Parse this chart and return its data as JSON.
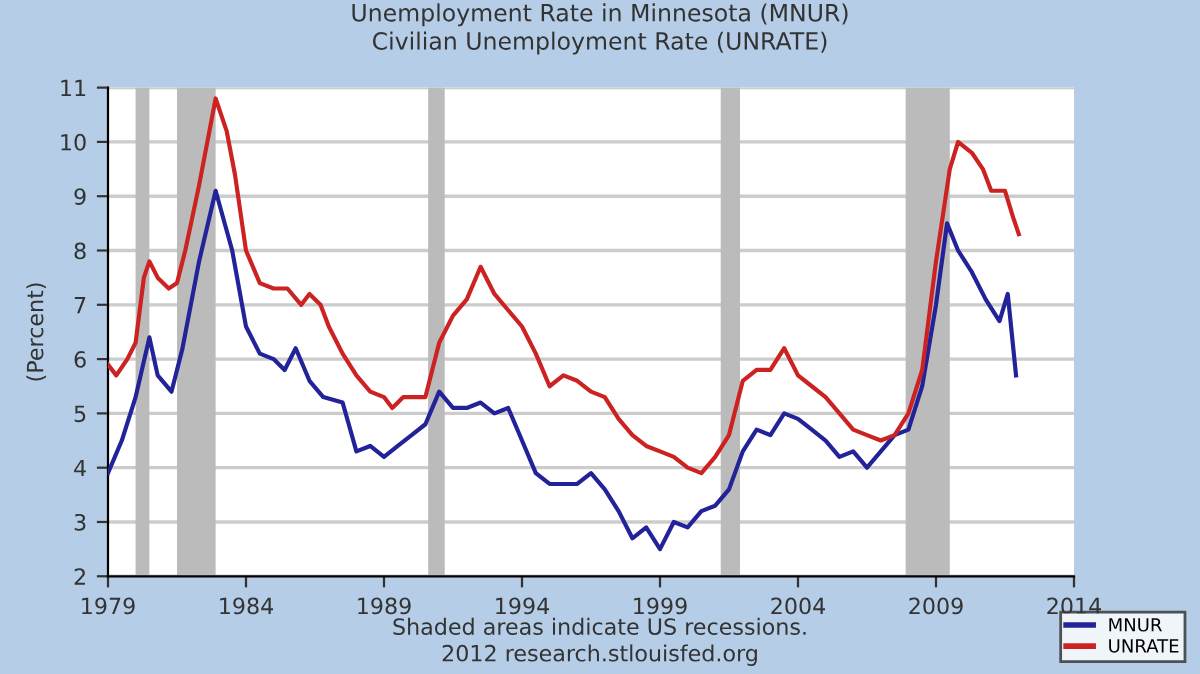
{
  "chart_data": {
    "type": "line",
    "title": "Unemployment Rate in Minnesota (MNUR)\nCivilian Unemployment Rate (UNRATE)",
    "ylabel": "(Percent)",
    "annotations": [
      "Shaded areas indicate US recessions.\n2012 research.stlouisfed.org"
    ],
    "xlim": [
      1979,
      2014
    ],
    "xticks": [
      1979,
      1984,
      1989,
      1994,
      1999,
      2004,
      2009,
      2014
    ],
    "ylim": [
      2,
      11
    ],
    "yticks": [
      2,
      3,
      4,
      5,
      6,
      7,
      8,
      9,
      10,
      11
    ],
    "grid": "y",
    "legend": "bottom right",
    "line_style": "solid",
    "marker": "none",
    "bands": [
      {
        "axis": "x",
        "from": 1980.0,
        "to": 1980.5,
        "color": "#bbbbbb"
      },
      {
        "axis": "x",
        "from": 1981.5,
        "to": 1982.9,
        "color": "#bbbbbb"
      },
      {
        "axis": "x",
        "from": 1990.6,
        "to": 1991.2,
        "color": "#bbbbbb"
      },
      {
        "axis": "x",
        "from": 2001.2,
        "to": 2001.9,
        "color": "#bbbbbb"
      },
      {
        "axis": "x",
        "from": 2007.9,
        "to": 2009.5,
        "color": "#bbbbbb"
      }
    ],
    "series": [
      {
        "name": "MNUR",
        "color": "#222299",
        "x": [
          1979.0,
          1979.5,
          1980.0,
          1980.5,
          1980.8,
          1981.3,
          1981.7,
          1982.3,
          1982.9,
          1983.5,
          1984.0,
          1984.5,
          1985.0,
          1985.4,
          1985.8,
          1986.3,
          1986.8,
          1987.5,
          1988.0,
          1988.5,
          1989.0,
          1989.5,
          1990.0,
          1990.5,
          1991.0,
          1991.5,
          1992.0,
          1992.5,
          1993.0,
          1993.5,
          1994.0,
          1994.5,
          1995.0,
          1995.5,
          1996.0,
          1996.5,
          1997.0,
          1997.5,
          1998.0,
          1998.5,
          1999.0,
          1999.5,
          2000.0,
          2000.5,
          2001.0,
          2001.5,
          2002.0,
          2002.5,
          2003.0,
          2003.5,
          2004.0,
          2004.5,
          2005.0,
          2005.5,
          2006.0,
          2006.5,
          2007.0,
          2007.5,
          2008.0,
          2008.5,
          2009.0,
          2009.4,
          2009.8,
          2010.3,
          2010.8,
          2011.3,
          2011.6,
          2011.9
        ],
        "values": [
          3.9,
          4.5,
          5.3,
          6.4,
          5.7,
          5.4,
          6.2,
          7.8,
          9.1,
          8.0,
          6.6,
          6.1,
          6.0,
          5.8,
          6.2,
          5.6,
          5.3,
          5.2,
          4.3,
          4.4,
          4.2,
          4.4,
          4.6,
          4.8,
          5.4,
          5.1,
          5.1,
          5.2,
          5.0,
          5.1,
          4.5,
          3.9,
          3.7,
          3.7,
          3.7,
          3.9,
          3.6,
          3.2,
          2.7,
          2.9,
          2.5,
          3.0,
          2.9,
          3.2,
          3.3,
          3.6,
          4.3,
          4.7,
          4.6,
          5.0,
          4.9,
          4.7,
          4.5,
          4.2,
          4.3,
          4.0,
          4.3,
          4.6,
          4.7,
          5.5,
          7.0,
          8.5,
          8.0,
          7.6,
          7.1,
          6.7,
          7.2,
          5.7
        ]
      },
      {
        "name": "UNRATE",
        "color": "#cc2222",
        "x": [
          1979.0,
          1979.3,
          1979.7,
          1980.0,
          1980.3,
          1980.5,
          1980.8,
          1981.2,
          1981.5,
          1981.8,
          1982.3,
          1982.9,
          1983.3,
          1983.6,
          1984.0,
          1984.5,
          1985.0,
          1985.5,
          1986.0,
          1986.3,
          1986.7,
          1987.0,
          1987.5,
          1988.0,
          1988.5,
          1989.0,
          1989.3,
          1989.7,
          1990.0,
          1990.5,
          1991.0,
          1991.5,
          1992.0,
          1992.5,
          1993.0,
          1993.5,
          1994.0,
          1994.5,
          1995.0,
          1995.5,
          1996.0,
          1996.5,
          1997.0,
          1997.5,
          1998.0,
          1998.5,
          1999.0,
          1999.5,
          2000.0,
          2000.5,
          2001.0,
          2001.5,
          2002.0,
          2002.5,
          2003.0,
          2003.5,
          2004.0,
          2004.5,
          2005.0,
          2005.5,
          2006.0,
          2006.5,
          2007.0,
          2007.5,
          2008.0,
          2008.5,
          2009.0,
          2009.5,
          2009.8,
          2010.3,
          2010.7,
          2011.0,
          2011.5,
          2011.8,
          2012.0
        ],
        "values": [
          5.9,
          5.7,
          6.0,
          6.3,
          7.5,
          7.8,
          7.5,
          7.3,
          7.4,
          8.0,
          9.2,
          10.8,
          10.2,
          9.4,
          8.0,
          7.4,
          7.3,
          7.3,
          7.0,
          7.2,
          7.0,
          6.6,
          6.1,
          5.7,
          5.4,
          5.3,
          5.1,
          5.3,
          5.3,
          5.3,
          6.3,
          6.8,
          7.1,
          7.7,
          7.2,
          6.9,
          6.6,
          6.1,
          5.5,
          5.7,
          5.6,
          5.4,
          5.3,
          4.9,
          4.6,
          4.4,
          4.3,
          4.2,
          4.0,
          3.9,
          4.2,
          4.6,
          5.6,
          5.8,
          5.8,
          6.2,
          5.7,
          5.5,
          5.3,
          5.0,
          4.7,
          4.6,
          4.5,
          4.6,
          5.0,
          5.8,
          7.8,
          9.5,
          10.0,
          9.8,
          9.5,
          9.1,
          9.1,
          8.6,
          8.3
        ]
      }
    ]
  }
}
